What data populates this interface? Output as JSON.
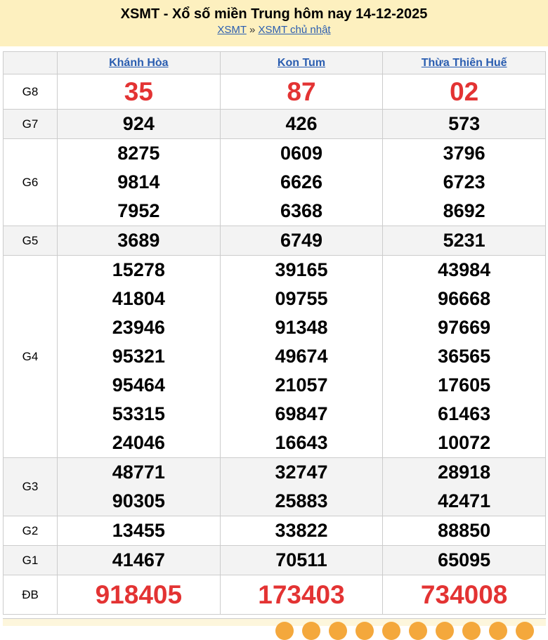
{
  "header": {
    "title": "XSMT - Xổ số miền Trung hôm nay 14-12-2025",
    "breadcrumb": [
      "XSMT",
      "XSMT chủ nhật"
    ],
    "separator": "»"
  },
  "provinces": [
    "Khánh Hòa",
    "Kon Tum",
    "Thừa Thiên Huế"
  ],
  "prizes": [
    {
      "label": "G8",
      "values": [
        [
          "35"
        ],
        [
          "87"
        ],
        [
          "02"
        ]
      ],
      "style": "red"
    },
    {
      "label": "G7",
      "values": [
        [
          "924"
        ],
        [
          "426"
        ],
        [
          "573"
        ]
      ]
    },
    {
      "label": "G6",
      "values": [
        [
          "8275",
          "9814",
          "7952"
        ],
        [
          "0609",
          "6626",
          "6368"
        ],
        [
          "3796",
          "6723",
          "8692"
        ]
      ]
    },
    {
      "label": "G5",
      "values": [
        [
          "3689"
        ],
        [
          "6749"
        ],
        [
          "5231"
        ]
      ]
    },
    {
      "label": "G4",
      "values": [
        [
          "15278",
          "41804",
          "23946",
          "95321",
          "95464",
          "53315",
          "24046"
        ],
        [
          "39165",
          "09755",
          "91348",
          "49674",
          "21057",
          "69847",
          "16643"
        ],
        [
          "43984",
          "96668",
          "97669",
          "36565",
          "17605",
          "61463",
          "10072"
        ]
      ]
    },
    {
      "label": "G3",
      "values": [
        [
          "48771",
          "90305"
        ],
        [
          "32747",
          "25883"
        ],
        [
          "28918",
          "42471"
        ]
      ]
    },
    {
      "label": "G2",
      "values": [
        [
          "13455"
        ],
        [
          "33822"
        ],
        [
          "88850"
        ]
      ]
    },
    {
      "label": "G1",
      "values": [
        [
          "41467"
        ],
        [
          "70511"
        ],
        [
          "65095"
        ]
      ]
    },
    {
      "label": "ĐB",
      "values": [
        [
          "918405"
        ],
        [
          "173403"
        ],
        [
          "734008"
        ]
      ],
      "style": "db"
    }
  ],
  "colors": {
    "accent_red": "#e33333",
    "link": "#2a5db0",
    "header_bg": "#fdf0bf"
  }
}
